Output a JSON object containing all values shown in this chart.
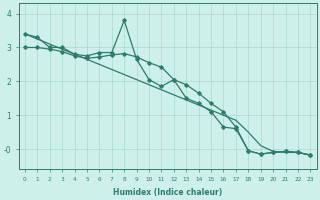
{
  "xlabel": "Humidex (Indice chaleur)",
  "x_values": [
    0,
    1,
    2,
    3,
    4,
    5,
    6,
    7,
    8,
    9,
    10,
    11,
    12,
    13,
    14,
    15,
    16,
    17,
    18,
    19,
    20,
    21,
    22,
    23
  ],
  "line_jagged": [
    3.4,
    3.3,
    3.0,
    3.0,
    2.8,
    2.75,
    2.85,
    2.85,
    3.8,
    2.65,
    2.05,
    1.85,
    2.05,
    1.5,
    1.35,
    1.1,
    0.65,
    0.6,
    -0.05,
    -0.15,
    -0.1,
    -0.07,
    -0.1,
    -0.18
  ],
  "line_mid": [
    3.0,
    3.0,
    2.95,
    2.88,
    2.75,
    2.68,
    2.72,
    2.78,
    2.82,
    2.72,
    2.55,
    2.42,
    2.05,
    1.9,
    1.65,
    1.35,
    1.1,
    0.65,
    -0.05,
    -0.15,
    -0.1,
    -0.07,
    -0.1,
    -0.18
  ],
  "line_straight": [
    3.4,
    3.25,
    3.1,
    2.95,
    2.8,
    2.65,
    2.5,
    2.35,
    2.2,
    2.05,
    1.9,
    1.75,
    1.6,
    1.45,
    1.3,
    1.15,
    1.0,
    0.85,
    0.5,
    0.1,
    -0.07,
    -0.1,
    -0.1,
    -0.18
  ],
  "line_color": "#2e7d6b",
  "bg_color": "#cef0ea",
  "grid_color": "#aad8d0",
  "ylim": [
    -0.6,
    4.3
  ],
  "xlim": [
    -0.5,
    23.5
  ],
  "ytick_positions": [
    0,
    1,
    2,
    3,
    4
  ],
  "ytick_labels": [
    "-0",
    "1",
    "2",
    "3",
    "4"
  ],
  "xtick_labels": [
    "0",
    "1",
    "2",
    "3",
    "4",
    "5",
    "6",
    "7",
    "8",
    "9",
    "10",
    "11",
    "12",
    "13",
    "14",
    "15",
    "16",
    "17",
    "18",
    "19",
    "20",
    "21",
    "22",
    "23"
  ]
}
